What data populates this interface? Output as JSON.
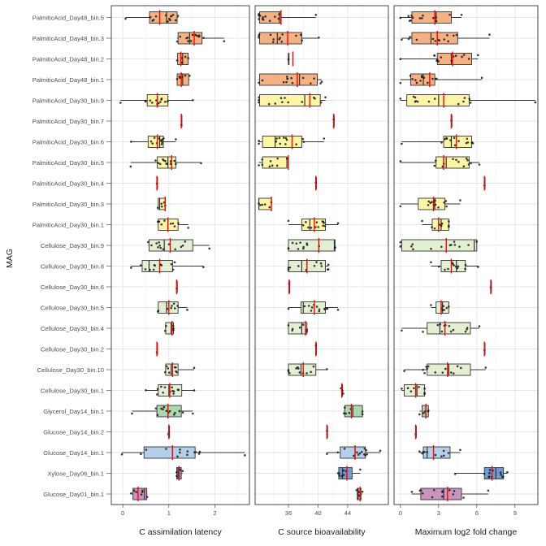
{
  "chart_data": {
    "type": "boxplot",
    "ylabel": "MAG",
    "categories": [
      "PalmiticAcid_Day48_bin.5",
      "PalmiticAcid_Day48_bin.3",
      "PalmiticAcid_Day48_bin.2",
      "PalmiticAcid_Day48_bin.1",
      "PalmiticAcid_Day30_bin.9",
      "PalmiticAcid_Day30_bin.7",
      "PalmiticAcid_Day30_bin.6",
      "PalmiticAcid_Day30_bin.5",
      "PalmiticAcid_Day30_bin.4",
      "PalmiticAcid_Day30_bin.3",
      "PalmiticAcid_Day30_bin.1",
      "Cellulose_Day30_bin.9",
      "Cellulose_Day30_bin.8",
      "Cellulose_Day30_bin.6",
      "Cellulose_Day30_bin.5",
      "Cellulose_Day30_bin.4",
      "Cellulose_Day30_bin.2",
      "Cellulose_Day30_bin.10",
      "Cellulose_Day30_bin.1",
      "Glycerol_Day14_bin.1",
      "Glucose_Day14_bin.2",
      "Glucose_Day14_bin.1",
      "Xylose_Day06_bin.1",
      "Glucose_Day01_bin.1"
    ],
    "substrate_colors": {
      "PalmiticAcid_Day48": "#f4b183",
      "PalmiticAcid_Day30": "#fdf5a6",
      "Cellulose_Day30": "#e3efd2",
      "Glycerol_Day14": "#a9d8b0",
      "Glucose_Day14": "#b4cfe9",
      "Xylose_Day06": "#6f9bd1",
      "Glucose_Day01": "#c994be"
    },
    "mean_color": "#ff0000",
    "panels": [
      {
        "xlabel": "C assimilation latency",
        "xlim": [
          -0.25,
          2.75
        ],
        "ticks": [
          0,
          1,
          2
        ],
        "boxes": [
          {
            "min": 0.06,
            "q1": 0.58,
            "med": 0.95,
            "q3": 1.18,
            "max": 1.2,
            "mean": 0.8
          },
          {
            "min": 1.18,
            "q1": 1.2,
            "med": 1.45,
            "q3": 1.72,
            "max": 2.2,
            "mean": 1.55
          },
          {
            "min": 1.18,
            "q1": 1.19,
            "med": 1.3,
            "q3": 1.42,
            "max": 1.42,
            "mean": 1.26
          },
          {
            "min": 1.18,
            "q1": 1.18,
            "med": 1.3,
            "q3": 1.43,
            "max": 1.45,
            "mean": 1.27
          },
          {
            "min": -0.05,
            "q1": 0.53,
            "med": 0.75,
            "q3": 0.98,
            "max": 1.52,
            "mean": 0.75
          },
          {
            "min": 1.27,
            "q1": 1.27,
            "med": 1.27,
            "q3": 1.27,
            "max": 1.27,
            "mean": 1.27
          },
          {
            "min": 0.18,
            "q1": 0.55,
            "med": 0.8,
            "q3": 0.88,
            "max": 1.15,
            "mean": 0.75
          },
          {
            "min": 0.17,
            "q1": 0.75,
            "med": 0.98,
            "q3": 1.15,
            "max": 1.7,
            "mean": 1.06
          },
          {
            "min": 0.74,
            "q1": 0.74,
            "med": 0.74,
            "q3": 0.74,
            "max": 0.74,
            "mean": 0.74
          },
          {
            "min": 0.76,
            "q1": 0.77,
            "med": 0.8,
            "q3": 0.92,
            "max": 0.92,
            "mean": 0.92
          },
          {
            "min": 0.76,
            "q1": 0.77,
            "med": 0.98,
            "q3": 1.2,
            "max": 1.42,
            "mean": 0.98
          },
          {
            "min": 0.55,
            "q1": 0.57,
            "med": 0.9,
            "q3": 1.52,
            "max": 1.88,
            "mean": 1.03
          },
          {
            "min": 0.18,
            "q1": 0.42,
            "med": 0.57,
            "q3": 1.08,
            "max": 1.75,
            "mean": 0.8
          },
          {
            "min": 1.17,
            "q1": 1.17,
            "med": 1.17,
            "q3": 1.17,
            "max": 1.17,
            "mean": 1.17
          },
          {
            "min": 0.76,
            "q1": 0.77,
            "med": 0.95,
            "q3": 1.2,
            "max": 1.4,
            "mean": 1.0
          },
          {
            "min": 0.92,
            "q1": 0.93,
            "med": 1.05,
            "q3": 1.1,
            "max": 1.1,
            "mean": 1.07
          },
          {
            "min": 0.74,
            "q1": 0.74,
            "med": 0.74,
            "q3": 0.74,
            "max": 0.74,
            "mean": 0.74
          },
          {
            "min": 0.92,
            "q1": 0.93,
            "med": 1.05,
            "q3": 1.2,
            "max": 1.55,
            "mean": 1.08
          },
          {
            "min": 0.5,
            "q1": 0.77,
            "med": 1.0,
            "q3": 1.28,
            "max": 1.55,
            "mean": 1.02
          },
          {
            "min": 0.2,
            "q1": 0.74,
            "med": 0.98,
            "q3": 1.27,
            "max": 1.52,
            "mean": 0.98
          },
          {
            "min": 0.99,
            "q1": 1.0,
            "med": 1.0,
            "q3": 1.0,
            "max": 1.0,
            "mean": 1.0
          },
          {
            "min": -0.02,
            "q1": 0.46,
            "med": 1.08,
            "q3": 1.57,
            "max": 2.65,
            "mean": 1.08
          },
          {
            "min": 1.17,
            "q1": 1.17,
            "med": 1.2,
            "q3": 1.27,
            "max": 1.3,
            "mean": 1.22
          },
          {
            "min": 0.18,
            "q1": 0.22,
            "med": 0.47,
            "q3": 0.52,
            "max": 0.53,
            "mean": 0.33
          }
        ]
      },
      {
        "xlabel": "C source bioavailability",
        "xlim": [
          31.5,
          49.5
        ],
        "ticks": [
          36,
          40,
          44
        ],
        "boxes": [
          {
            "min": 32.0,
            "q1": 32.1,
            "med": 34.8,
            "q3": 35.0,
            "max": 39.7,
            "mean": 35.0
          },
          {
            "min": 32.0,
            "q1": 32.1,
            "med": 34.5,
            "q3": 37.8,
            "max": 40.1,
            "mean": 35.9
          },
          {
            "min": 36.0,
            "q1": 36.0,
            "med": 36.0,
            "q3": 36.0,
            "max": 36.0,
            "mean": 36.6
          },
          {
            "min": 32.0,
            "q1": 32.1,
            "med": 37.5,
            "q3": 39.9,
            "max": 40.5,
            "mean": 37.2
          },
          {
            "min": 32.0,
            "q1": 32.1,
            "med": 38.2,
            "q3": 40.3,
            "max": 41.0,
            "mean": 38.9
          },
          {
            "min": 42.1,
            "q1": 42.1,
            "med": 42.1,
            "q3": 42.1,
            "max": 42.1,
            "mean": 42.1
          },
          {
            "min": 32.0,
            "q1": 32.5,
            "med": 34.2,
            "q3": 37.8,
            "max": 40.8,
            "mean": 36.5
          },
          {
            "min": 32.0,
            "q1": 32.5,
            "med": 35.8,
            "q3": 35.8,
            "max": 35.8,
            "mean": 36.0
          },
          {
            "min": 39.7,
            "q1": 39.7,
            "med": 39.7,
            "q3": 39.7,
            "max": 39.7,
            "mean": 39.7
          },
          {
            "min": 32.0,
            "q1": 32.0,
            "med": 32.0,
            "q3": 33.7,
            "max": 33.7,
            "mean": 33.7
          },
          {
            "min": 36.0,
            "q1": 37.8,
            "med": 38.9,
            "q3": 41.0,
            "max": 42.7,
            "mean": 39.5
          },
          {
            "min": 36.0,
            "q1": 36.0,
            "med": 42.2,
            "q3": 42.3,
            "max": 42.3,
            "mean": 40.1
          },
          {
            "min": 36.0,
            "q1": 36.0,
            "med": 37.8,
            "q3": 41.0,
            "max": 41.4,
            "mean": 38.5
          },
          {
            "min": 36.1,
            "q1": 36.1,
            "med": 36.1,
            "q3": 36.1,
            "max": 36.1,
            "mean": 36.1
          },
          {
            "min": 36.0,
            "q1": 37.7,
            "med": 38.0,
            "q3": 41.0,
            "max": 42.7,
            "mean": 39.5
          },
          {
            "min": 36.0,
            "q1": 36.0,
            "med": 37.8,
            "q3": 38.5,
            "max": 38.5,
            "mean": 38.3
          },
          {
            "min": 39.7,
            "q1": 39.7,
            "med": 39.7,
            "q3": 39.7,
            "max": 39.7,
            "mean": 39.7
          },
          {
            "min": 36.0,
            "q1": 36.0,
            "med": 37.7,
            "q3": 39.7,
            "max": 41.2,
            "mean": 38.0
          },
          {
            "min": 43.1,
            "q1": 43.2,
            "med": 43.3,
            "q3": 43.3,
            "max": 43.4,
            "mean": 43.2
          },
          {
            "min": 43.5,
            "q1": 43.6,
            "med": 44.7,
            "q3": 46.0,
            "max": 46.0,
            "mean": 44.5
          },
          {
            "min": 41.2,
            "q1": 41.2,
            "med": 41.2,
            "q3": 41.2,
            "max": 41.2,
            "mean": 41.2
          },
          {
            "min": 41.2,
            "q1": 43.0,
            "med": 45.0,
            "q3": 46.4,
            "max": 48.4,
            "mean": 45.0
          },
          {
            "min": 42.7,
            "q1": 42.8,
            "med": 43.3,
            "q3": 44.6,
            "max": 45.7,
            "mean": 43.9
          },
          {
            "min": 45.2,
            "q1": 45.3,
            "med": 45.4,
            "q3": 45.8,
            "max": 46.0,
            "mean": 45.7
          }
        ]
      },
      {
        "xlabel": "Maximum log2 fold change",
        "xlim": [
          -0.5,
          10.8
        ],
        "ticks": [
          0,
          3,
          6,
          9
        ],
        "boxes": [
          {
            "min": 0.0,
            "q1": 0.9,
            "med": 2.8,
            "q3": 4.0,
            "max": 4.8,
            "mean": 2.7
          },
          {
            "min": 0.1,
            "q1": 0.9,
            "med": 2.4,
            "q3": 4.5,
            "max": 7.0,
            "mean": 2.9
          },
          {
            "min": 0.0,
            "q1": 2.9,
            "med": 4.0,
            "q3": 5.6,
            "max": 6.1,
            "mean": 4.1
          },
          {
            "min": 0.0,
            "q1": 0.8,
            "med": 1.8,
            "q3": 2.7,
            "max": 6.4,
            "mean": 2.3
          },
          {
            "min": 0.0,
            "q1": 0.5,
            "med": 3.0,
            "q3": 5.4,
            "max": 10.6,
            "mean": 3.4
          },
          {
            "min": 4.0,
            "q1": 4.0,
            "med": 4.0,
            "q3": 4.0,
            "max": 4.0,
            "mean": 4.0
          },
          {
            "min": 0.1,
            "q1": 3.4,
            "med": 4.0,
            "q3": 5.6,
            "max": 5.7,
            "mean": 4.4
          },
          {
            "min": 0.0,
            "q1": 2.8,
            "med": 3.6,
            "q3": 5.4,
            "max": 6.2,
            "mean": 3.4
          },
          {
            "min": 6.6,
            "q1": 6.6,
            "med": 6.6,
            "q3": 6.6,
            "max": 6.6,
            "mean": 6.6
          },
          {
            "min": 0.0,
            "q1": 1.4,
            "med": 2.7,
            "q3": 3.5,
            "max": 4.7,
            "mean": 2.6
          },
          {
            "min": 1.7,
            "q1": 2.5,
            "med": 3.2,
            "q3": 3.8,
            "max": 3.8,
            "mean": 3.0
          },
          {
            "min": 0.0,
            "q1": 0.1,
            "med": 5.8,
            "q3": 6.0,
            "max": 6.0,
            "mean": 3.6
          },
          {
            "min": 2.4,
            "q1": 3.2,
            "med": 4.4,
            "q3": 5.1,
            "max": 6.1,
            "mean": 4.0
          },
          {
            "min": 7.1,
            "q1": 7.1,
            "med": 7.1,
            "q3": 7.1,
            "max": 7.1,
            "mean": 7.1
          },
          {
            "min": 2.4,
            "q1": 2.8,
            "med": 3.3,
            "q3": 3.8,
            "max": 3.8,
            "mean": 3.2
          },
          {
            "min": 0.1,
            "q1": 2.1,
            "med": 3.1,
            "q3": 5.5,
            "max": 6.2,
            "mean": 3.5
          },
          {
            "min": 6.6,
            "q1": 6.6,
            "med": 6.6,
            "q3": 6.6,
            "max": 6.6,
            "mean": 6.6
          },
          {
            "min": 0.3,
            "q1": 2.1,
            "med": 3.8,
            "q3": 5.5,
            "max": 6.7,
            "mean": 3.7
          },
          {
            "min": 0.1,
            "q1": 0.3,
            "med": 1.3,
            "q3": 1.9,
            "max": 1.9,
            "mean": 1.2
          },
          {
            "min": 1.5,
            "q1": 1.7,
            "med": 2.0,
            "q3": 2.2,
            "max": 2.2,
            "mean": 2.0
          },
          {
            "min": 1.2,
            "q1": 1.2,
            "med": 1.2,
            "q3": 1.2,
            "max": 1.2,
            "mean": 1.2
          },
          {
            "min": 1.5,
            "q1": 1.8,
            "med": 2.1,
            "q3": 3.9,
            "max": 4.7,
            "mean": 2.6
          },
          {
            "min": 4.3,
            "q1": 6.6,
            "med": 7.5,
            "q3": 8.1,
            "max": 8.4,
            "mean": 7.2
          },
          {
            "min": 0.9,
            "q1": 1.6,
            "med": 3.4,
            "q3": 4.8,
            "max": 6.9,
            "mean": 3.7
          }
        ]
      }
    ]
  }
}
